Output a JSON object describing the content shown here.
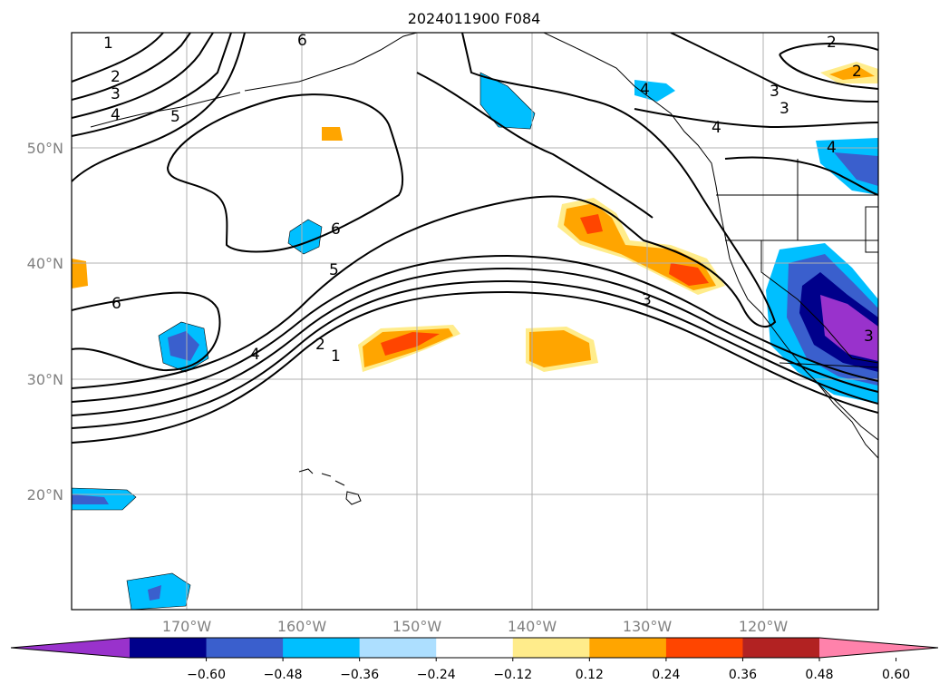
{
  "title": "2024011900 F084",
  "lat_labels": [
    "50°N",
    "40°N",
    "30°N",
    "20°N"
  ],
  "lon_labels": [
    "170°W",
    "160°W",
    "150°W",
    "140°W",
    "130°W",
    "120°W"
  ],
  "colorbar": {
    "ticks": [
      "−0.60",
      "−0.48",
      "−0.36",
      "−0.24",
      "−0.12",
      "0.12",
      "0.24",
      "0.36",
      "0.48",
      "0.60"
    ],
    "colors": [
      "#9932CC",
      "#00008B",
      "#3A5FCD",
      "#00BFFF",
      "#ADDFFF",
      "#FFFFFF",
      "#FFEC8B",
      "#FFA500",
      "#FF4500",
      "#B22222",
      "#FF82AB"
    ]
  },
  "contour_labels": [
    "1",
    "2",
    "3",
    "4",
    "5",
    "6",
    "2",
    "3",
    "4",
    "5",
    "6",
    "6",
    "4",
    "2",
    "1",
    "3",
    "2",
    "3",
    "4",
    "4",
    "3"
  ],
  "map": {
    "lon_range": [
      -180,
      -110
    ],
    "lat_range": [
      10,
      60
    ],
    "gridlines": true
  }
}
